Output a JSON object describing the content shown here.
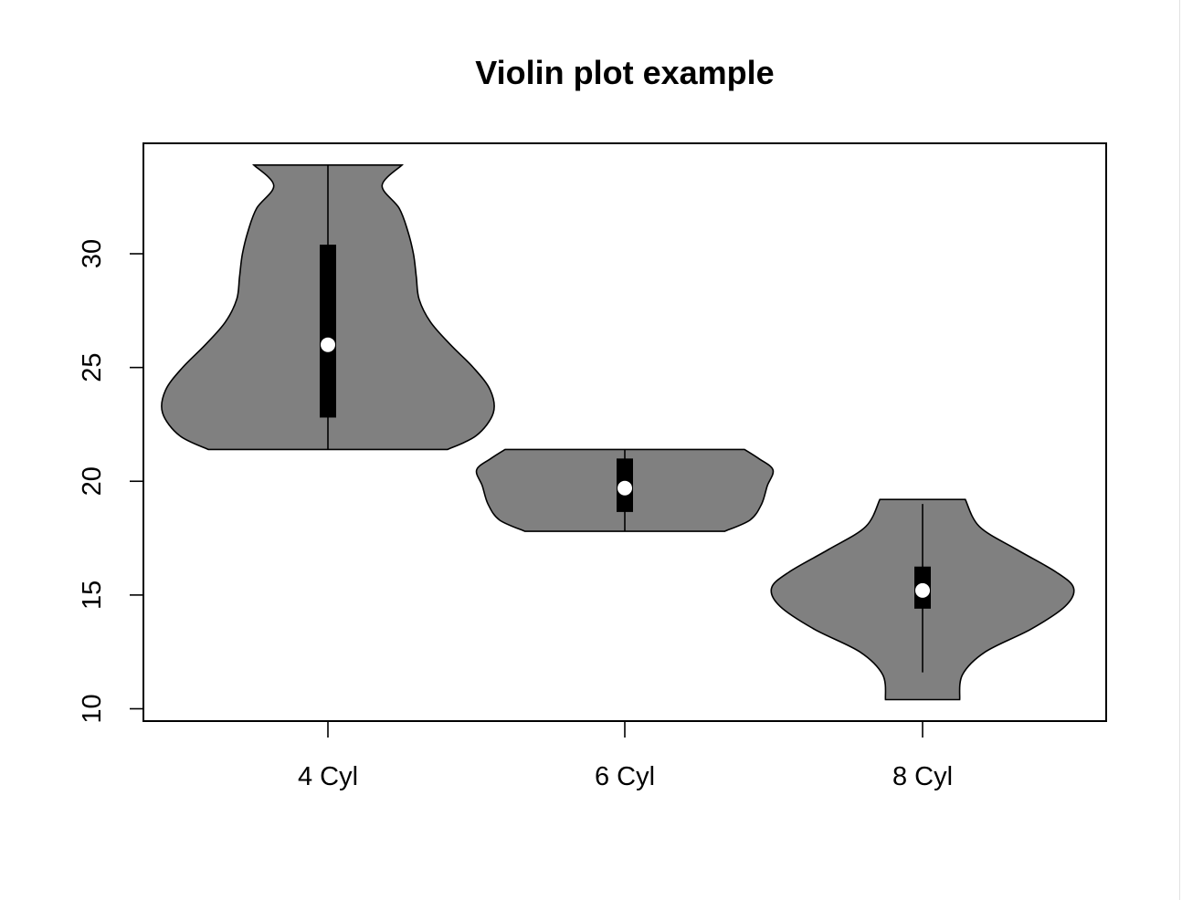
{
  "chart_data": {
    "type": "violin",
    "title": "Violin plot example",
    "xlabel": "",
    "ylabel": "",
    "categories": [
      "4 Cyl",
      "6 Cyl",
      "8 Cyl"
    ],
    "ylim": [
      9.5,
      35.0
    ],
    "yticks": [
      10,
      15,
      20,
      25,
      30
    ],
    "grid": false,
    "fill_color": "#808080",
    "box_color": "#000000",
    "median_color": "#ffffff",
    "violins": [
      {
        "name": "4 Cyl",
        "min": 21.4,
        "q1": 22.8,
        "median": 26.0,
        "q3": 30.4,
        "max": 33.9,
        "density": [
          [
            21.4,
            0.42
          ],
          [
            22.0,
            0.52
          ],
          [
            23.0,
            0.58
          ],
          [
            24.0,
            0.57
          ],
          [
            25.0,
            0.51
          ],
          [
            26.0,
            0.43
          ],
          [
            27.0,
            0.36
          ],
          [
            28.0,
            0.32
          ],
          [
            29.0,
            0.31
          ],
          [
            30.0,
            0.3
          ],
          [
            31.0,
            0.28
          ],
          [
            32.0,
            0.25
          ],
          [
            33.0,
            0.19
          ],
          [
            33.9,
            0.26
          ]
        ]
      },
      {
        "name": "6 Cyl",
        "min": 17.8,
        "q1": 18.65,
        "median": 19.7,
        "q3": 21.0,
        "max": 21.4,
        "density": [
          [
            17.8,
            0.35
          ],
          [
            18.3,
            0.44
          ],
          [
            19.0,
            0.48
          ],
          [
            19.8,
            0.5
          ],
          [
            20.5,
            0.52
          ],
          [
            21.0,
            0.47
          ],
          [
            21.4,
            0.42
          ]
        ]
      },
      {
        "name": "8 Cyl",
        "min": 10.4,
        "q1": 14.4,
        "median": 15.2,
        "q3": 16.25,
        "max": 19.2,
        "whisker_low": 11.6,
        "whisker_high": 19.0,
        "density": [
          [
            10.4,
            0.13
          ],
          [
            11.5,
            0.14
          ],
          [
            12.5,
            0.22
          ],
          [
            13.5,
            0.38
          ],
          [
            14.5,
            0.5
          ],
          [
            15.3,
            0.53
          ],
          [
            16.0,
            0.47
          ],
          [
            17.0,
            0.33
          ],
          [
            18.0,
            0.2
          ],
          [
            19.2,
            0.15
          ]
        ]
      }
    ]
  }
}
